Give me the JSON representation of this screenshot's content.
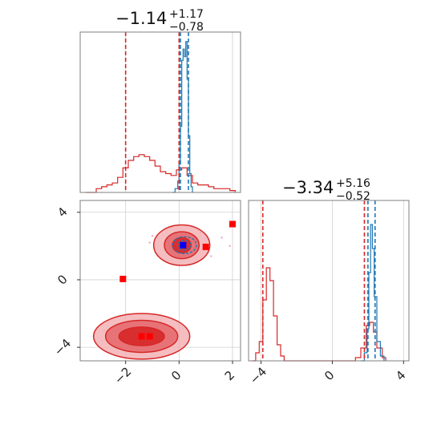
{
  "chart_data": {
    "type": "corner",
    "colors": {
      "red": "#d62728",
      "blue": "#1f77b4",
      "marker_blue": "#0000ff",
      "marker_red": "#ff0000",
      "scatter": "#f0a6c4"
    },
    "param1": {
      "title_value": "−1.14",
      "title_plus": "+1.17",
      "title_minus": "−0.78",
      "xlim": [
        -3.7,
        2.3
      ],
      "ticks": [
        -2,
        0,
        2
      ],
      "tick_labels": [
        "−2",
        "0",
        "2"
      ],
      "red_lines": [
        -2.0,
        0.0
      ],
      "blue_lines": [
        0.05,
        0.35
      ],
      "hist_red": [
        {
          "x": -3.5,
          "y": 0.0
        },
        {
          "x": -3.1,
          "y": 0.02
        },
        {
          "x": -2.9,
          "y": 0.03
        },
        {
          "x": -2.7,
          "y": 0.04
        },
        {
          "x": -2.5,
          "y": 0.05
        },
        {
          "x": -2.3,
          "y": 0.08
        },
        {
          "x": -2.1,
          "y": 0.13
        },
        {
          "x": -1.9,
          "y": 0.17
        },
        {
          "x": -1.7,
          "y": 0.19
        },
        {
          "x": -1.5,
          "y": 0.2
        },
        {
          "x": -1.3,
          "y": 0.19
        },
        {
          "x": -1.1,
          "y": 0.17
        },
        {
          "x": -0.9,
          "y": 0.14
        },
        {
          "x": -0.7,
          "y": 0.11
        },
        {
          "x": -0.5,
          "y": 0.1
        },
        {
          "x": -0.3,
          "y": 0.09
        },
        {
          "x": -0.1,
          "y": 0.12
        },
        {
          "x": 0.1,
          "y": 0.13
        },
        {
          "x": 0.3,
          "y": 0.09
        },
        {
          "x": 0.5,
          "y": 0.05
        },
        {
          "x": 0.7,
          "y": 0.04
        },
        {
          "x": 0.9,
          "y": 0.04
        },
        {
          "x": 1.1,
          "y": 0.03
        },
        {
          "x": 1.3,
          "y": 0.02
        },
        {
          "x": 1.5,
          "y": 0.02
        },
        {
          "x": 1.7,
          "y": 0.02
        },
        {
          "x": 1.9,
          "y": 0.01
        },
        {
          "x": 2.1,
          "y": 0.0
        }
      ],
      "hist_blue": [
        {
          "x": -0.25,
          "y": 0.0
        },
        {
          "x": -0.15,
          "y": 0.02
        },
        {
          "x": -0.05,
          "y": 0.06
        },
        {
          "x": 0.0,
          "y": 0.15
        },
        {
          "x": 0.05,
          "y": 0.35
        },
        {
          "x": 0.1,
          "y": 0.7
        },
        {
          "x": 0.15,
          "y": 0.76
        },
        {
          "x": 0.2,
          "y": 0.72
        },
        {
          "x": 0.25,
          "y": 0.8
        },
        {
          "x": 0.3,
          "y": 0.6
        },
        {
          "x": 0.35,
          "y": 0.3
        },
        {
          "x": 0.4,
          "y": 0.1
        },
        {
          "x": 0.45,
          "y": 0.03
        },
        {
          "x": 0.5,
          "y": 0.0
        }
      ]
    },
    "param2": {
      "title_value": "−3.34",
      "title_plus": "+5.16",
      "title_minus": "−0.52",
      "xlim": [
        -4.7,
        4.3
      ],
      "ticks": [
        -4,
        0,
        4
      ],
      "tick_labels": [
        "−4",
        "0",
        "4"
      ],
      "red_lines": [
        -3.9,
        1.8
      ],
      "blue_lines": [
        2.0,
        2.4
      ],
      "hist_red": [
        {
          "x": -4.5,
          "y": 0.0
        },
        {
          "x": -4.3,
          "y": 0.05
        },
        {
          "x": -4.1,
          "y": 0.12
        },
        {
          "x": -3.9,
          "y": 0.38
        },
        {
          "x": -3.7,
          "y": 0.58
        },
        {
          "x": -3.5,
          "y": 0.5
        },
        {
          "x": -3.3,
          "y": 0.28
        },
        {
          "x": -3.1,
          "y": 0.1
        },
        {
          "x": -2.9,
          "y": 0.03
        },
        {
          "x": -2.7,
          "y": 0.0
        },
        {
          "x": 1.3,
          "y": 0.02
        },
        {
          "x": 1.6,
          "y": 0.08
        },
        {
          "x": 1.9,
          "y": 0.22
        },
        {
          "x": 2.1,
          "y": 0.24
        },
        {
          "x": 2.3,
          "y": 0.18
        },
        {
          "x": 2.5,
          "y": 0.08
        },
        {
          "x": 2.8,
          "y": 0.02
        },
        {
          "x": 3.0,
          "y": 0.0
        }
      ],
      "hist_blue": [
        {
          "x": 1.6,
          "y": 0.0
        },
        {
          "x": 1.8,
          "y": 0.05
        },
        {
          "x": 1.95,
          "y": 0.2
        },
        {
          "x": 2.05,
          "y": 0.55
        },
        {
          "x": 2.15,
          "y": 0.85
        },
        {
          "x": 2.25,
          "y": 0.7
        },
        {
          "x": 2.35,
          "y": 0.4
        },
        {
          "x": 2.5,
          "y": 0.12
        },
        {
          "x": 2.7,
          "y": 0.03
        },
        {
          "x": 2.9,
          "y": 0.0
        }
      ]
    },
    "joint": {
      "xlim": [
        -3.7,
        2.3
      ],
      "ylim": [
        -4.8,
        4.7
      ],
      "markers": [
        {
          "x": -1.4,
          "y": -3.35,
          "color": "red"
        },
        {
          "x": -1.1,
          "y": -3.35,
          "color": "red"
        },
        {
          "x": -2.1,
          "y": 0.05,
          "color": "red"
        },
        {
          "x": 1.0,
          "y": 1.95,
          "color": "red"
        },
        {
          "x": 2.0,
          "y": 3.3,
          "color": "red"
        },
        {
          "x": 0.15,
          "y": 2.05,
          "color": "blue"
        }
      ],
      "contours_upper": [
        {
          "cx": 0.1,
          "cy": 2.05,
          "rx": 1.05,
          "ry": 1.2,
          "level": "outer"
        },
        {
          "cx": 0.1,
          "cy": 2.05,
          "rx": 0.65,
          "ry": 0.8,
          "level": "mid"
        },
        {
          "cx": 0.1,
          "cy": 2.05,
          "rx": 0.35,
          "ry": 0.45,
          "level": "inner"
        }
      ],
      "contours_lower": [
        {
          "cx": -1.4,
          "cy": -3.35,
          "rx": 1.8,
          "ry": 1.35,
          "level": "outer"
        },
        {
          "cx": -1.4,
          "cy": -3.35,
          "rx": 1.35,
          "ry": 0.95,
          "level": "mid"
        },
        {
          "cx": -1.4,
          "cy": -3.35,
          "rx": 0.85,
          "ry": 0.55,
          "level": "inner"
        }
      ],
      "blue_contours": [
        {
          "cx": 0.2,
          "cy": 2.05,
          "rx": 0.45,
          "ry": 0.5
        },
        {
          "cx": 0.2,
          "cy": 2.05,
          "rx": 0.25,
          "ry": 0.28
        }
      ]
    }
  }
}
